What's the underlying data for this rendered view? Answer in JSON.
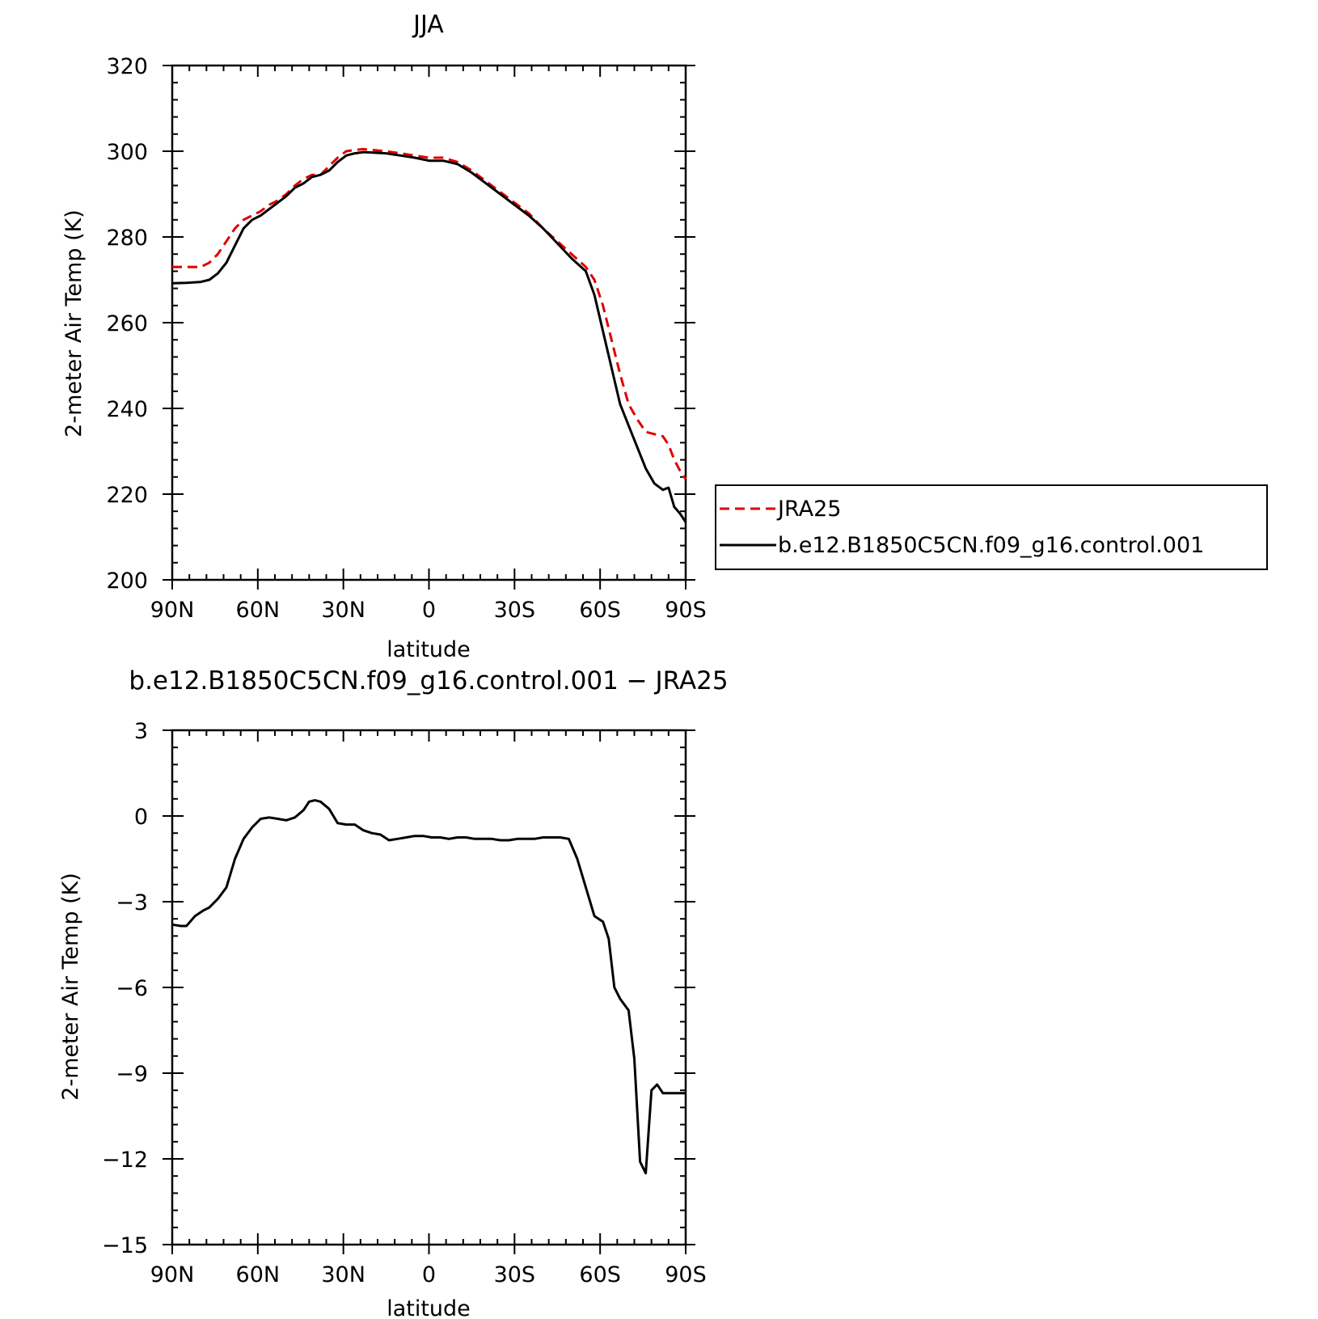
{
  "chart_data": [
    {
      "type": "line",
      "title": "JJA",
      "xlabel": "latitude",
      "ylabel": "2-meter Air Temp (K)",
      "xlim": [
        -90,
        90
      ],
      "ylim": [
        200,
        320
      ],
      "x_direction": "90N on left, 90S on right",
      "x_ticks": [
        -90,
        -60,
        -30,
        0,
        30,
        60,
        90
      ],
      "x_tick_labels": [
        "90N",
        "60N",
        "30N",
        "0",
        "30S",
        "60S",
        "90S"
      ],
      "y_ticks": [
        200,
        220,
        240,
        260,
        280,
        300,
        320
      ],
      "y_tick_labels": [
        "200",
        "220",
        "240",
        "260",
        "280",
        "300",
        "320"
      ],
      "grid": false,
      "legend_position": "right, outside plot",
      "series": [
        {
          "name": "JRA25",
          "color": "#e00000",
          "dash": "dashed",
          "x": [
            -90,
            -85,
            -80,
            -77,
            -74,
            -71,
            -68,
            -65,
            -62,
            -59,
            -56,
            -53,
            -50,
            -47,
            -44,
            -41,
            -38,
            -35,
            -32,
            -29,
            -26,
            -23,
            -20,
            -15,
            -10,
            -5,
            0,
            5,
            10,
            15,
            20,
            25,
            30,
            35,
            40,
            45,
            50,
            55,
            58,
            61,
            64,
            67,
            70,
            73,
            76,
            79,
            82,
            84,
            86,
            88,
            90
          ],
          "values": [
            273,
            273,
            273,
            274,
            276,
            279,
            282,
            284,
            285,
            286,
            287.5,
            288.5,
            290,
            292,
            293.5,
            294.5,
            294.5,
            296.5,
            298.5,
            300,
            300.3,
            300.5,
            300.3,
            300,
            299.5,
            299,
            298.5,
            298.5,
            297.5,
            295.5,
            293,
            290.5,
            288,
            285.5,
            282,
            279,
            276,
            273,
            270,
            264,
            256,
            248,
            241,
            237.5,
            234.5,
            234,
            233.5,
            231.5,
            228,
            225.5,
            223.5
          ]
        },
        {
          "name": "b.e12.B1850C5CN.f09_g16.control.001",
          "color": "#000000",
          "dash": "solid",
          "x": [
            -90,
            -85,
            -80,
            -77,
            -74,
            -71,
            -68,
            -65,
            -62,
            -59,
            -56,
            -53,
            -50,
            -47,
            -44,
            -41,
            -38,
            -35,
            -32,
            -29,
            -26,
            -23,
            -20,
            -15,
            -10,
            -5,
            0,
            5,
            10,
            15,
            20,
            25,
            30,
            35,
            40,
            45,
            50,
            55,
            58,
            61,
            64,
            67,
            70,
            73,
            76,
            79,
            82,
            84,
            86,
            88,
            90
          ],
          "values": [
            269.2,
            269.3,
            269.5,
            270,
            271.5,
            274,
            278,
            282,
            284,
            285,
            286.5,
            288,
            289.5,
            291.5,
            292.5,
            294,
            294.5,
            295.5,
            297.5,
            299,
            299.5,
            299.8,
            299.7,
            299.5,
            299,
            298.5,
            297.8,
            297.8,
            297,
            295,
            292.5,
            290,
            287.5,
            285,
            282,
            278.5,
            275,
            272,
            266.5,
            258,
            249.5,
            241,
            236,
            231,
            226,
            222.5,
            221,
            221.5,
            217,
            215.5,
            213.5
          ]
        }
      ]
    },
    {
      "type": "line",
      "title": "b.e12.B1850C5CN.f09_g16.control.001 − JRA25",
      "xlabel": "latitude",
      "ylabel": "2-meter Air Temp (K)",
      "xlim": [
        -90,
        90
      ],
      "ylim": [
        -15,
        3
      ],
      "x_direction": "90N on left, 90S on right",
      "x_ticks": [
        -90,
        -60,
        -30,
        0,
        30,
        60,
        90
      ],
      "x_tick_labels": [
        "90N",
        "60N",
        "30N",
        "0",
        "30S",
        "60S",
        "90S"
      ],
      "y_ticks": [
        -15,
        -12,
        -9,
        -6,
        -3,
        0,
        3
      ],
      "y_tick_labels": [
        "−15",
        "−12",
        "−9",
        "−6",
        "−3",
        "0",
        "3"
      ],
      "grid": false,
      "series": [
        {
          "name": "",
          "color": "#000000",
          "dash": "solid",
          "x": [
            -90,
            -87,
            -85,
            -82,
            -79,
            -77,
            -74,
            -71,
            -68,
            -65,
            -62,
            -59,
            -56,
            -53,
            -50,
            -47,
            -44,
            -42,
            -40,
            -38,
            -35,
            -32,
            -29,
            -26,
            -23,
            -20,
            -17,
            -14,
            -11,
            -8,
            -5,
            -2,
            1,
            4,
            7,
            10,
            13,
            16,
            19,
            22,
            25,
            28,
            31,
            34,
            37,
            40,
            43,
            46,
            49,
            52,
            55,
            58,
            61,
            63,
            65,
            67,
            70,
            72,
            74,
            76,
            78,
            80,
            82,
            84,
            86,
            88,
            90
          ],
          "values": [
            -3.8,
            -3.85,
            -3.85,
            -3.5,
            -3.3,
            -3.2,
            -2.9,
            -2.5,
            -1.5,
            -0.8,
            -0.4,
            -0.1,
            -0.05,
            -0.1,
            -0.15,
            -0.05,
            0.2,
            0.5,
            0.55,
            0.5,
            0.25,
            -0.25,
            -0.3,
            -0.3,
            -0.5,
            -0.6,
            -0.65,
            -0.85,
            -0.8,
            -0.75,
            -0.7,
            -0.7,
            -0.75,
            -0.75,
            -0.8,
            -0.75,
            -0.75,
            -0.8,
            -0.8,
            -0.8,
            -0.85,
            -0.85,
            -0.8,
            -0.8,
            -0.8,
            -0.75,
            -0.75,
            -0.75,
            -0.8,
            -1.5,
            -2.5,
            -3.5,
            -3.7,
            -4.3,
            -6,
            -6.4,
            -6.8,
            -8.5,
            -12.1,
            -12.5,
            -9.6,
            -9.4,
            -9.7,
            -9.7,
            -9.7,
            -9.7,
            -9.7
          ]
        }
      ]
    }
  ]
}
